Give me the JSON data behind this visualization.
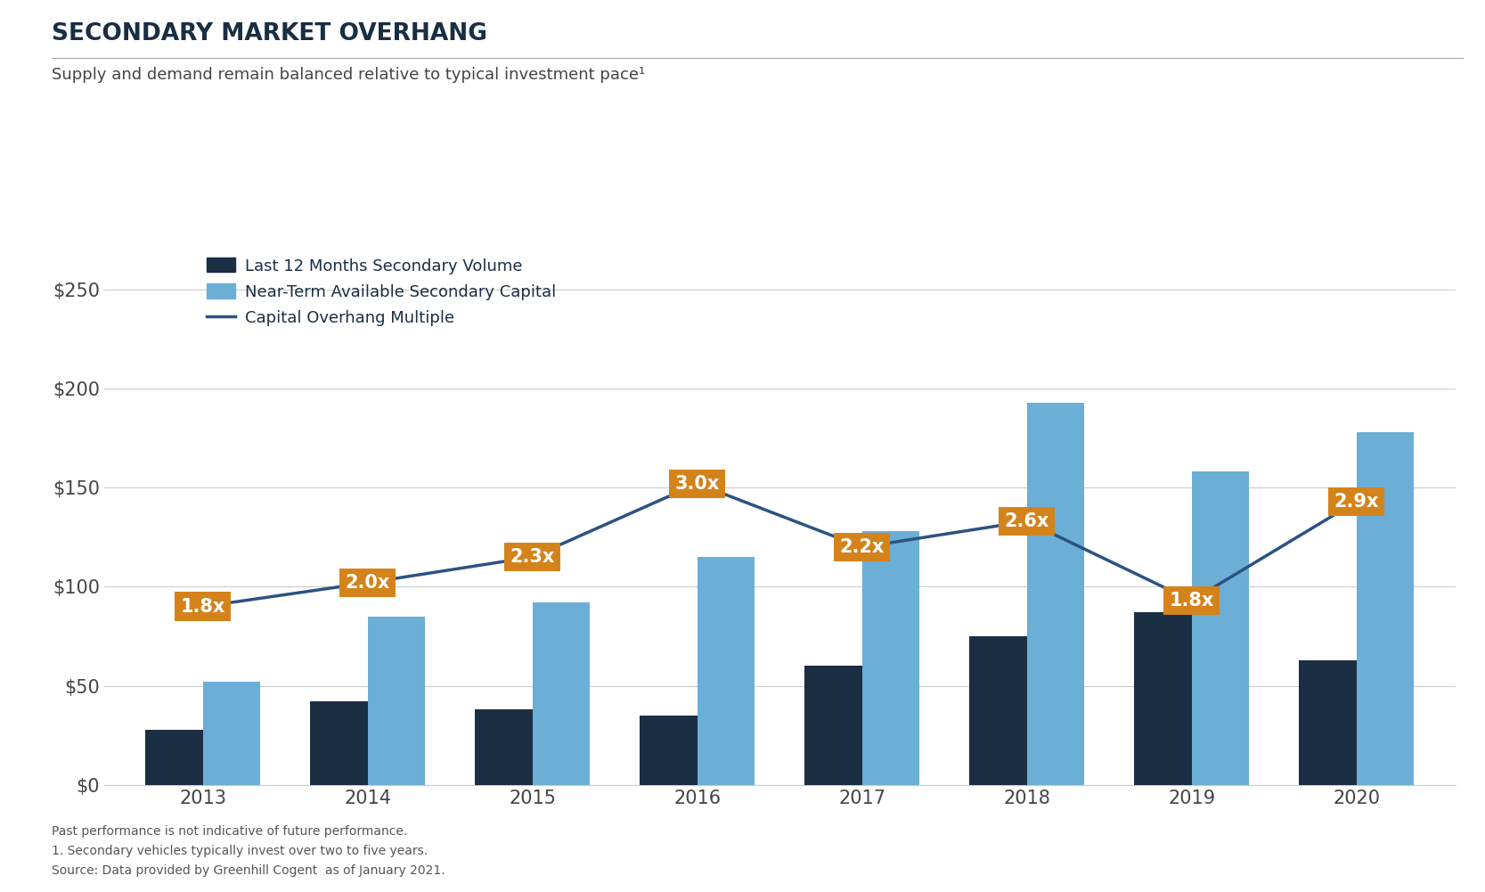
{
  "title": "SECONDARY MARKET OVERHANG",
  "subtitle": "Supply and demand remain balanced relative to typical investment pace¹",
  "years": [
    2013,
    2014,
    2015,
    2016,
    2017,
    2018,
    2019,
    2020
  ],
  "dark_bars": [
    28,
    42,
    38,
    35,
    60,
    75,
    87,
    63
  ],
  "light_bars": [
    52,
    85,
    92,
    115,
    128,
    193,
    158,
    178
  ],
  "line_values": [
    90,
    102,
    115,
    152,
    120,
    133,
    93,
    143
  ],
  "labels": [
    "1.8x",
    "2.0x",
    "2.3x",
    "3.0x",
    "2.2x",
    "2.6x",
    "1.8x",
    "2.9x"
  ],
  "dark_bar_color": "#1a2e44",
  "light_bar_color": "#6baed6",
  "line_color": "#2c5282",
  "label_bg_color": "#d4831a",
  "label_text_color": "#ffffff",
  "yticks": [
    0,
    50,
    100,
    150,
    200,
    250
  ],
  "ytick_labels": [
    "$0",
    "$50",
    "$100",
    "$150",
    "$200",
    "$250"
  ],
  "ylim": [
    0,
    270
  ],
  "background_color": "#ffffff",
  "legend_dark": "Last 12 Months Secondary Volume",
  "legend_light": "Near-Term Available Secondary Capital",
  "legend_line": "Capital Overhang Multiple",
  "footnote1": "Past performance is not indicative of future performance.",
  "footnote2": "1. Secondary vehicles typically invest over two to five years.",
  "footnote3": "Source: Data provided by Greenhill Cogent  as of January 2021.",
  "title_color": "#1a2e44",
  "subtitle_color": "#444444",
  "tick_color": "#444444",
  "grid_color": "#cccccc"
}
